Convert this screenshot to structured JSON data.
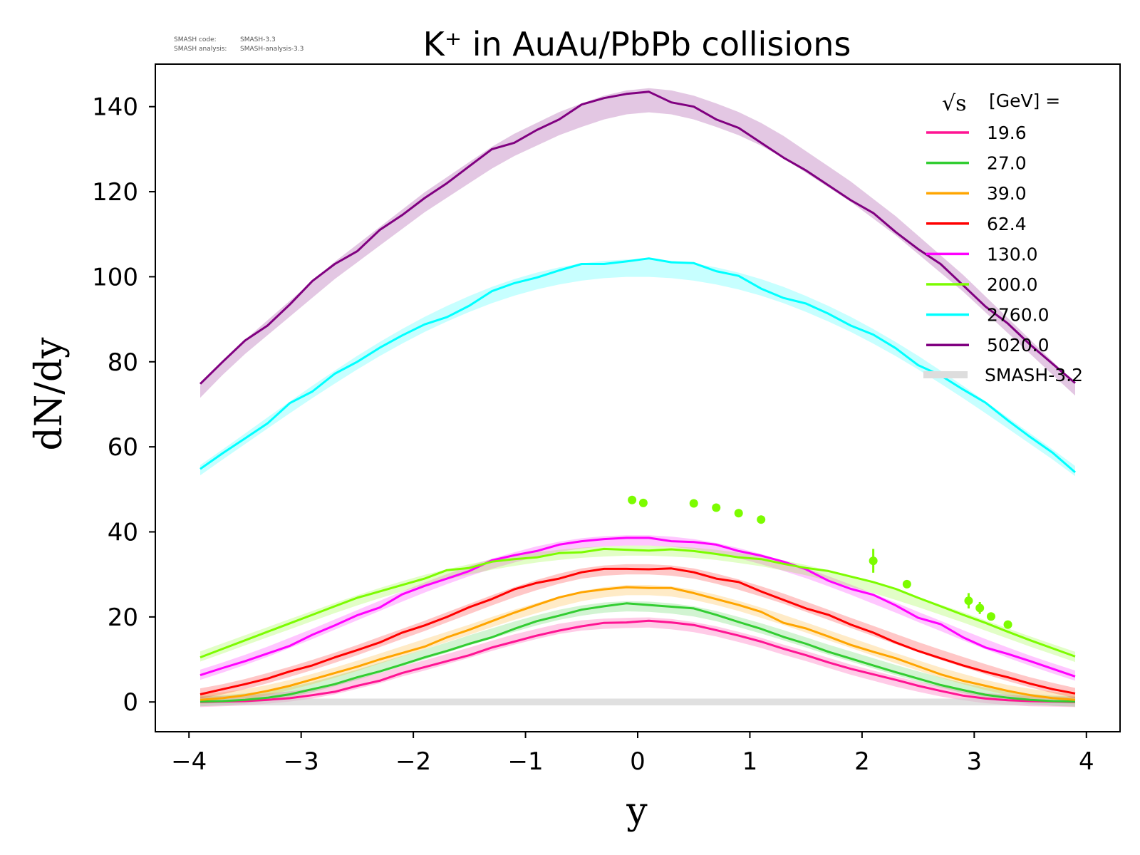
{
  "meta": {
    "code_label": "SMASH code:",
    "code_value": "SMASH-3.3",
    "analysis_label": "SMASH analysis:",
    "analysis_value": "SMASH-analysis-3.3"
  },
  "chart_data": {
    "type": "line",
    "title": "K⁺ in AuAu/PbPb collisions",
    "xlabel": "y",
    "ylabel": "dN/dy",
    "xlim": [
      -4.3,
      4.3
    ],
    "ylim": [
      -7,
      150
    ],
    "xticks": [
      "−4",
      "−3",
      "−2",
      "−1",
      "0",
      "1",
      "2",
      "3",
      "4"
    ],
    "yticks": [
      "0",
      "20",
      "40",
      "60",
      "80",
      "100",
      "120",
      "140"
    ],
    "grid": false,
    "legend": {
      "placement": "top-right",
      "title_symbol": "√s",
      "title_text": "[GeV] =",
      "reference_label": "SMASH-3.2",
      "reference_color": "#cccccc"
    },
    "x": [
      -3.9,
      -3.7,
      -3.5,
      -3.3,
      -3.1,
      -2.9,
      -2.7,
      -2.5,
      -2.3,
      -2.1,
      -1.9,
      -1.7,
      -1.5,
      -1.3,
      -1.1,
      -0.9,
      -0.7,
      -0.5,
      -0.3,
      -0.1,
      0.1,
      0.3,
      0.5,
      0.7,
      0.9,
      1.1,
      1.3,
      1.5,
      1.7,
      1.9,
      2.1,
      2.3,
      2.5,
      2.7,
      2.9,
      3.1,
      3.3,
      3.5,
      3.7,
      3.9
    ],
    "series": [
      {
        "name": "19.6",
        "color": "#ff1493",
        "values": [
          0,
          0.1,
          0.2,
          0.5,
          0.9,
          1.6,
          2.4,
          3.8,
          5,
          6.8,
          8.2,
          9.6,
          11,
          12.8,
          14.2,
          15.6,
          16.8,
          17.8,
          18.6,
          18.7,
          19.1,
          18.7,
          18.1,
          16.9,
          15.6,
          14.2,
          12.5,
          11,
          9.3,
          7.8,
          6.5,
          5.2,
          3.8,
          2.6,
          1.5,
          0.8,
          0.4,
          0.2,
          0.1,
          0
        ],
        "ref": [
          0,
          0.2,
          0.4,
          0.8,
          1.3,
          2,
          3,
          4.3,
          5.6,
          7.2,
          8.6,
          10.1,
          11.6,
          13.2,
          14.7,
          16,
          17.2,
          18,
          18.4,
          18.6,
          18.7,
          18.3,
          17.6,
          16.6,
          15.3,
          13.9,
          12.3,
          10.8,
          9.2,
          7.6,
          6.2,
          4.8,
          3.6,
          2.5,
          1.6,
          0.9,
          0.5,
          0.2,
          0.1,
          0
        ]
      },
      {
        "name": "27.0",
        "color": "#32cd32",
        "values": [
          0.1,
          0.2,
          0.5,
          1,
          1.8,
          3,
          4.2,
          5.8,
          7.2,
          8.8,
          10.5,
          12,
          13.7,
          15.2,
          17.2,
          19,
          20.3,
          21.7,
          22.5,
          23.2,
          22.8,
          22.4,
          22,
          20.5,
          18.8,
          17.2,
          15.3,
          13.7,
          11.8,
          10.2,
          8.6,
          7,
          5.5,
          4,
          2.8,
          1.7,
          1,
          0.5,
          0.2,
          0.1
        ],
        "ref": [
          0.2,
          0.4,
          0.8,
          1.4,
          2.3,
          3.5,
          4.9,
          6.4,
          8,
          9.6,
          11.2,
          12.8,
          14.5,
          16.1,
          17.7,
          19.2,
          20.5,
          21.5,
          22.2,
          22.5,
          22.4,
          22,
          21.3,
          20.2,
          18.8,
          17.3,
          15.7,
          14,
          12.3,
          10.7,
          9.1,
          7.5,
          6,
          4.6,
          3.3,
          2.2,
          1.3,
          0.7,
          0.3,
          0.1
        ]
      },
      {
        "name": "39.0",
        "color": "#ffa500",
        "values": [
          0.5,
          0.9,
          1.6,
          2.6,
          3.8,
          5.3,
          6.8,
          8.3,
          10,
          11.5,
          13,
          15.2,
          17,
          19,
          21,
          22.8,
          24.6,
          25.8,
          26.5,
          27,
          26.8,
          26.8,
          25.6,
          24.2,
          22.8,
          21.2,
          18.6,
          17.3,
          15.4,
          13.4,
          11.8,
          10.3,
          8.4,
          6.5,
          5,
          3.8,
          2.6,
          1.6,
          0.9,
          0.5
        ],
        "ref": [
          0.6,
          1.1,
          1.8,
          2.8,
          4,
          5.4,
          6.9,
          8.5,
          10.2,
          11.9,
          13.6,
          15.3,
          17,
          18.8,
          20.5,
          22.1,
          23.6,
          24.9,
          25.8,
          26.3,
          26.3,
          26,
          25.2,
          24,
          22.6,
          21,
          19.3,
          17.5,
          15.7,
          13.9,
          12.1,
          10.3,
          8.6,
          6.9,
          5.4,
          4,
          2.8,
          1.9,
          1.2,
          0.6
        ]
      },
      {
        "name": "62.4",
        "color": "#ff0000",
        "values": [
          1.8,
          3,
          4.2,
          5.5,
          7.2,
          8.6,
          10.5,
          12.2,
          14,
          16.3,
          18,
          20,
          22.3,
          24.2,
          26.5,
          28,
          29,
          30.5,
          31.3,
          31.3,
          31.2,
          31.4,
          30.5,
          29,
          28.2,
          26,
          24,
          22,
          20.5,
          18.2,
          16.3,
          14,
          12,
          10.3,
          8.6,
          7.1,
          5.8,
          4.3,
          3,
          2
        ],
        "ref": [
          2,
          3,
          4.2,
          5.6,
          7.1,
          8.7,
          10.4,
          12.2,
          14.1,
          16,
          17.9,
          19.9,
          21.9,
          23.9,
          25.8,
          27.5,
          29,
          30.2,
          30.9,
          31.2,
          31.2,
          30.9,
          30.2,
          29,
          27.6,
          26,
          24.3,
          22.4,
          20.5,
          18.6,
          16.7,
          14.8,
          12.9,
          11.1,
          9.4,
          7.7,
          6.1,
          4.6,
          3.3,
          2.1
        ]
      },
      {
        "name": "130.0",
        "color": "#ff00ff",
        "values": [
          6.3,
          8,
          9.6,
          11.4,
          13.2,
          15.8,
          18,
          20.4,
          22.2,
          25.3,
          27.3,
          29,
          30.8,
          33.3,
          34.5,
          35.5,
          37,
          37.8,
          38.3,
          38.6,
          38.6,
          37.8,
          37.6,
          37,
          35.5,
          34.4,
          33,
          31.2,
          28.5,
          26.6,
          25.2,
          22.7,
          19.8,
          18.3,
          15.2,
          12.8,
          11.3,
          9.6,
          7.8,
          6
        ],
        "ref": [
          6.4,
          8.1,
          9.9,
          11.8,
          13.9,
          16,
          18.2,
          20.4,
          22.6,
          24.8,
          26.9,
          28.9,
          30.8,
          32.5,
          34,
          35.4,
          36.5,
          37.3,
          37.8,
          38,
          38,
          37.7,
          37.1,
          36.2,
          35,
          33.6,
          32,
          30.3,
          28.4,
          26.4,
          24.3,
          22.2,
          20,
          17.9,
          15.7,
          13.6,
          11.6,
          9.7,
          7.9,
          6.2
        ]
      },
      {
        "name": "200.0",
        "color": "#7cfc00",
        "values": [
          10.5,
          12.5,
          14.5,
          16.5,
          18.5,
          20.5,
          22.5,
          24.5,
          26,
          27.5,
          29,
          31,
          31.5,
          33,
          33.6,
          34,
          35,
          35.2,
          36,
          35.8,
          35.6,
          35.9,
          35.5,
          34.8,
          34,
          33.6,
          32.5,
          31.5,
          30.8,
          29.5,
          28.2,
          26.6,
          24.5,
          22.5,
          20.5,
          18.6,
          16.5,
          14.5,
          12.6,
          10.7
        ],
        "ref": [
          10.7,
          12.6,
          14.5,
          16.4,
          18.3,
          20.2,
          22.1,
          23.9,
          25.6,
          27.2,
          28.7,
          30,
          31.2,
          32.3,
          33.2,
          34,
          34.6,
          35.1,
          35.4,
          35.6,
          35.6,
          35.4,
          35.1,
          34.6,
          33.9,
          33.1,
          32.1,
          31,
          29.7,
          28.3,
          26.8,
          25.2,
          23.5,
          21.7,
          19.9,
          18,
          16.1,
          14.2,
          12.4,
          10.6
        ]
      },
      {
        "name": "2760.0",
        "color": "#00ffff",
        "values": [
          54.8,
          58.5,
          62,
          65.5,
          70.3,
          73,
          77.2,
          80,
          83.3,
          86.2,
          88.8,
          90.5,
          93.2,
          96.6,
          98.5,
          99.8,
          101.5,
          103,
          103,
          103.6,
          104.3,
          103.4,
          103.2,
          101.3,
          100.2,
          97.2,
          95,
          93.7,
          91.3,
          88.5,
          86.4,
          83.2,
          79.2,
          76.8,
          73.5,
          70.4,
          66.2,
          62.3,
          58.6,
          54
        ],
        "ref": [
          54.5,
          58.2,
          61.9,
          65.6,
          69.3,
          72.9,
          76.4,
          79.8,
          83,
          86,
          88.8,
          91.3,
          93.6,
          95.7,
          97.5,
          99,
          100.2,
          101.1,
          101.7,
          102,
          102,
          101.7,
          101.1,
          100.2,
          99,
          97.5,
          95.7,
          93.6,
          91.3,
          88.8,
          86,
          83,
          79.8,
          76.4,
          72.9,
          69.3,
          65.6,
          61.9,
          58.2,
          54.3
        ]
      },
      {
        "name": "5020.0",
        "color": "#800080",
        "values": [
          74.8,
          80,
          85,
          88.5,
          93.5,
          99,
          103,
          106,
          111,
          114.5,
          118.5,
          122,
          126,
          130,
          131.5,
          134.5,
          137,
          140.5,
          142,
          143,
          143.5,
          141,
          140,
          137,
          135,
          131.5,
          128,
          125,
          121.5,
          118,
          115,
          110.5,
          106.5,
          103,
          98,
          93,
          89,
          84,
          79.5,
          75
        ],
        "ref": [
          73,
          78.5,
          83.5,
          88,
          92.5,
          97,
          101.5,
          105.5,
          109.5,
          113.5,
          117.5,
          121,
          124.5,
          128,
          131,
          133.5,
          136,
          138,
          139.8,
          141,
          141.5,
          141,
          139.8,
          138,
          136,
          133.5,
          130.5,
          127,
          123.5,
          120,
          116,
          112,
          107.5,
          103,
          98.5,
          93.5,
          88.5,
          83.5,
          78.5,
          73.5
        ]
      }
    ],
    "experimental": [
      {
        "series": "200.0",
        "x": -0.05,
        "y": 47.5,
        "err": 0.6
      },
      {
        "series": "200.0",
        "x": 0.05,
        "y": 46.8,
        "err": 0.6
      },
      {
        "series": "200.0",
        "x": 0.5,
        "y": 46.7,
        "err": 0.6
      },
      {
        "series": "200.0",
        "x": 0.7,
        "y": 45.7,
        "err": 0.6
      },
      {
        "series": "200.0",
        "x": 0.9,
        "y": 44.4,
        "err": 0.6
      },
      {
        "series": "200.0",
        "x": 1.1,
        "y": 42.9,
        "err": 0.6
      },
      {
        "series": "200.0",
        "x": 2.1,
        "y": 33.2,
        "err": 2.8
      },
      {
        "series": "200.0",
        "x": 2.4,
        "y": 27.7,
        "err": 0.6
      },
      {
        "series": "200.0",
        "x": 2.95,
        "y": 23.8,
        "err": 1.8
      },
      {
        "series": "200.0",
        "x": 3.05,
        "y": 22.1,
        "err": 1.4
      },
      {
        "series": "200.0",
        "x": 3.15,
        "y": 20.1,
        "err": 0.6
      },
      {
        "series": "200.0",
        "x": 3.3,
        "y": 18.2,
        "err": 0.6
      }
    ]
  }
}
